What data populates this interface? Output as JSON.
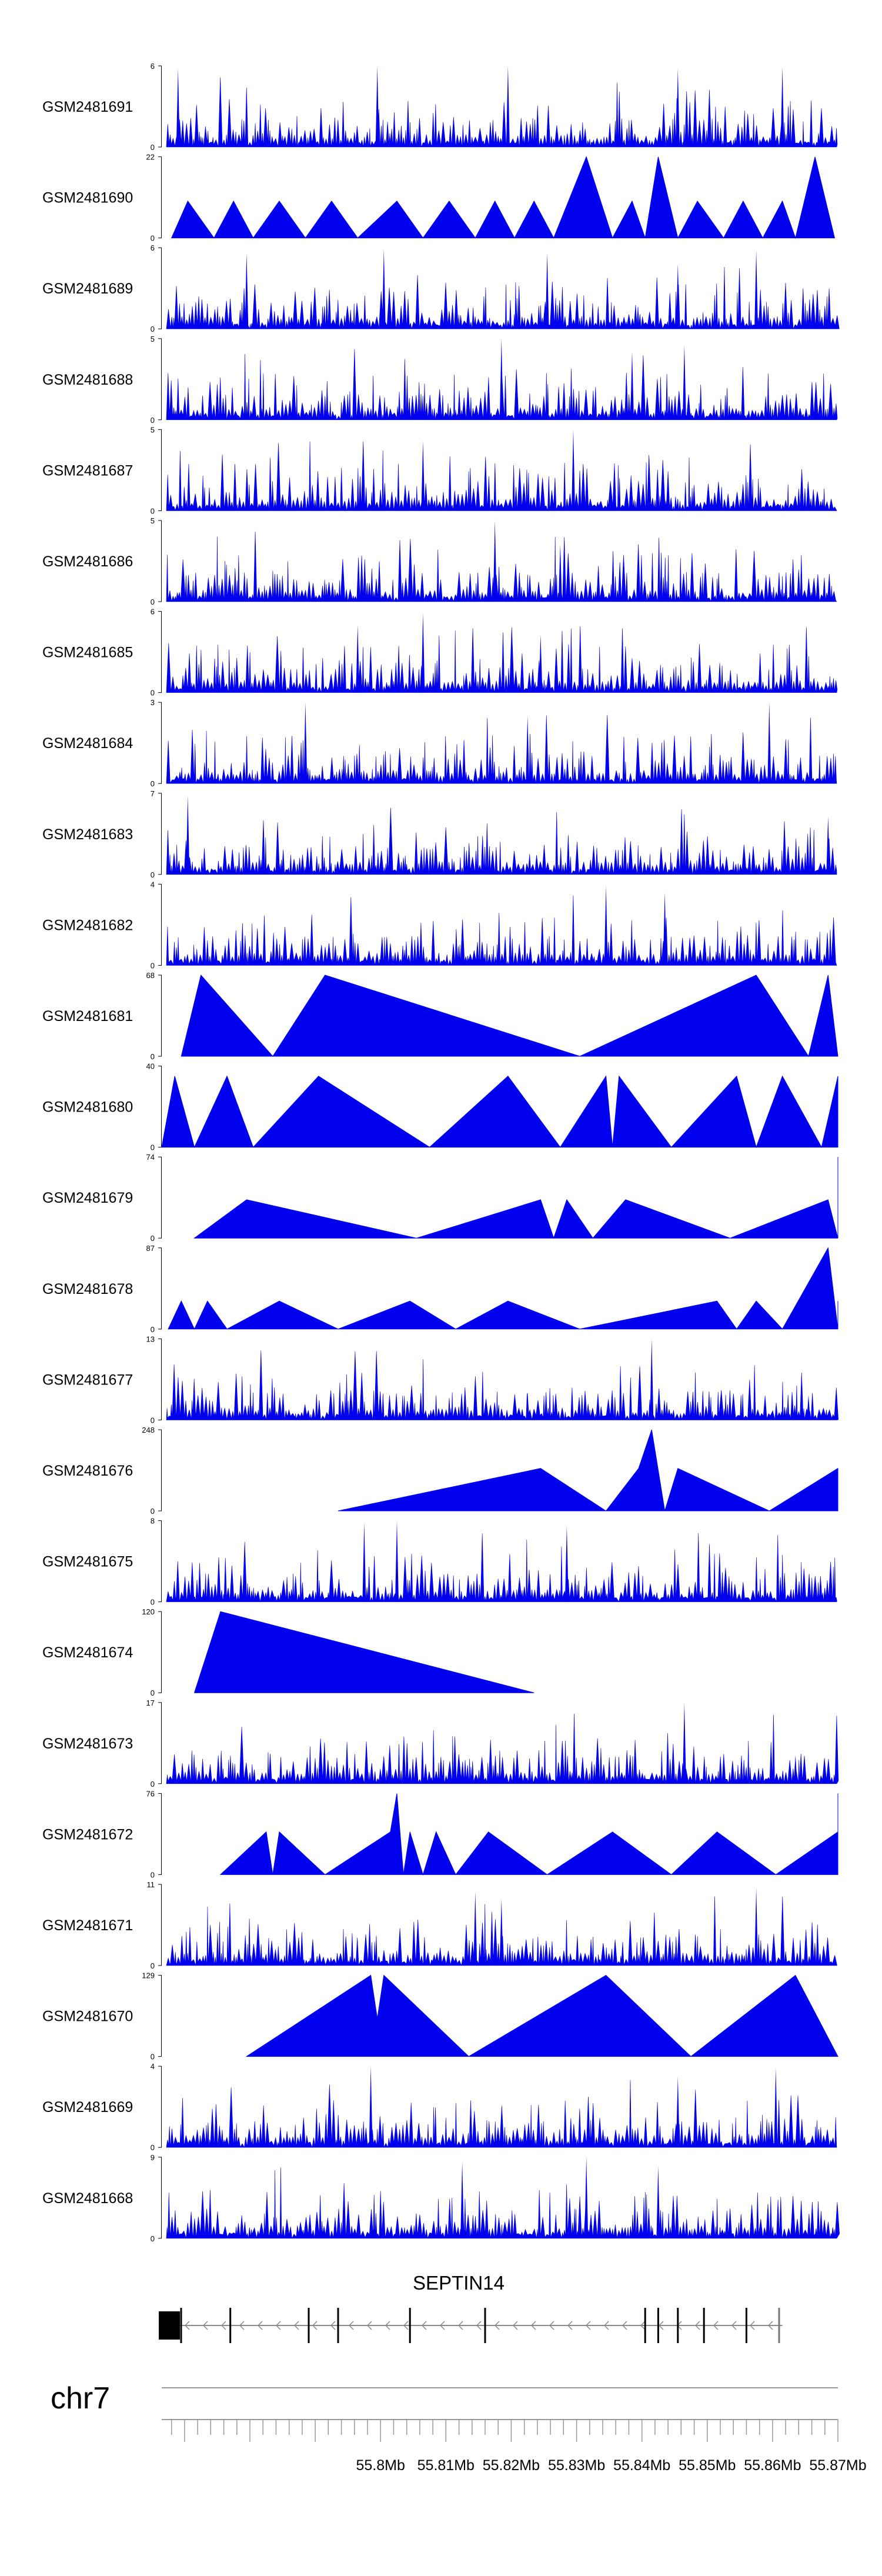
{
  "chart_data": {
    "type": "area",
    "chromosome": "chr7",
    "x_range_mb": [
      55.7665,
      55.87
    ],
    "x_ticks": [
      55.8,
      55.81,
      55.82,
      55.83,
      55.84,
      55.85,
      55.86,
      55.87
    ],
    "x_tick_labels": [
      "55.8Mb",
      "55.81Mb",
      "55.82Mb",
      "55.83Mb",
      "55.84Mb",
      "55.85Mb",
      "55.86Mb",
      "55.87Mb"
    ],
    "fill_color": "#0000ee",
    "tracks": [
      {
        "label": "GSM2481691",
        "ymax": 6,
        "style": "dense",
        "seed": 91,
        "peaks": [
          [
            55.769,
            5.8
          ],
          [
            55.7995,
            6.0
          ],
          [
            55.8195,
            6.0
          ],
          [
            55.8455,
            5.8
          ],
          [
            55.8615,
            5.9
          ]
        ]
      },
      {
        "label": "GSM2481690",
        "ymax": 22,
        "style": "sparse",
        "points": [
          [
            55.768,
            0
          ],
          [
            55.7705,
            10
          ],
          [
            55.7745,
            0
          ],
          [
            55.7775,
            10
          ],
          [
            55.7805,
            0
          ],
          [
            55.7845,
            10
          ],
          [
            55.7885,
            0
          ],
          [
            55.7925,
            10
          ],
          [
            55.7965,
            0
          ],
          [
            55.8025,
            10
          ],
          [
            55.8065,
            0
          ],
          [
            55.8105,
            10
          ],
          [
            55.8145,
            0
          ],
          [
            55.8175,
            10
          ],
          [
            55.8205,
            0
          ],
          [
            55.8235,
            10
          ],
          [
            55.8265,
            0
          ],
          [
            55.8315,
            22
          ],
          [
            55.8355,
            0
          ],
          [
            55.8385,
            10
          ],
          [
            55.8405,
            0
          ],
          [
            55.8425,
            22
          ],
          [
            55.8455,
            0
          ],
          [
            55.8485,
            10
          ],
          [
            55.8525,
            0
          ],
          [
            55.8555,
            10
          ],
          [
            55.8585,
            0
          ],
          [
            55.8615,
            10
          ],
          [
            55.8635,
            0
          ],
          [
            55.8665,
            22
          ],
          [
            55.8695,
            0
          ]
        ]
      },
      {
        "label": "GSM2481689",
        "ymax": 6,
        "style": "dense",
        "seed": 89,
        "peaks": [
          [
            55.7795,
            5.6
          ],
          [
            55.8005,
            5.9
          ],
          [
            55.8255,
            5.6
          ],
          [
            55.8575,
            5.8
          ],
          [
            55.8455,
            4.8
          ]
        ]
      },
      {
        "label": "GSM2481688",
        "ymax": 5,
        "style": "dense",
        "seed": 88,
        "peaks": [
          [
            55.8185,
            5.0
          ],
          [
            55.8385,
            4.2
          ],
          [
            55.8465,
            4.6
          ]
        ]
      },
      {
        "label": "GSM2481687",
        "ymax": 5,
        "style": "dense",
        "seed": 87,
        "peaks": [
          [
            55.8295,
            5.0
          ],
          [
            55.8065,
            4.3
          ]
        ]
      },
      {
        "label": "GSM2481686",
        "ymax": 5,
        "style": "dense",
        "seed": 86,
        "peaks": [
          [
            55.8175,
            5.0
          ],
          [
            55.8275,
            3.5
          ]
        ]
      },
      {
        "label": "GSM2481685",
        "ymax": 6,
        "style": "dense",
        "seed": 85,
        "peaks": [
          [
            55.7965,
            5.0
          ],
          [
            55.8065,
            5.9
          ],
          [
            55.8245,
            4.3
          ]
        ]
      },
      {
        "label": "GSM2481684",
        "ymax": 3,
        "style": "dense",
        "seed": 84,
        "peaks": [
          [
            55.7885,
            3.0
          ],
          [
            55.8595,
            3.0
          ],
          [
            55.8225,
            2.5
          ]
        ]
      },
      {
        "label": "GSM2481683",
        "ymax": 7,
        "style": "dense",
        "seed": 83,
        "peaks": [
          [
            55.7705,
            6.8
          ],
          [
            55.8685,
            5.0
          ]
        ]
      },
      {
        "label": "GSM2481682",
        "ymax": 4,
        "style": "dense",
        "seed": 82,
        "peaks": [
          [
            55.8345,
            3.9
          ],
          [
            55.8435,
            3.6
          ]
        ]
      },
      {
        "label": "GSM2481681",
        "ymax": 68,
        "style": "sparse",
        "points": [
          [
            55.7695,
            0
          ],
          [
            55.7725,
            68
          ],
          [
            55.7835,
            0
          ],
          [
            55.7915,
            68
          ],
          [
            55.8305,
            0
          ],
          [
            55.8575,
            68
          ],
          [
            55.8655,
            0
          ],
          [
            55.8685,
            68
          ],
          [
            55.8735,
            0
          ]
        ]
      },
      {
        "label": "GSM2481680",
        "ymax": 40,
        "style": "sparse",
        "points": [
          [
            55.7665,
            0
          ],
          [
            55.7685,
            35
          ],
          [
            55.7715,
            0
          ],
          [
            55.7765,
            35
          ],
          [
            55.7805,
            0
          ],
          [
            55.7905,
            35
          ],
          [
            55.8075,
            0
          ],
          [
            55.8195,
            35
          ],
          [
            55.8275,
            0
          ],
          [
            55.8345,
            35
          ],
          [
            55.8355,
            0
          ],
          [
            55.8365,
            35
          ],
          [
            55.8445,
            0
          ],
          [
            55.8545,
            35
          ],
          [
            55.8575,
            0
          ],
          [
            55.8615,
            35
          ],
          [
            55.8675,
            0
          ],
          [
            55.8705,
            35
          ]
        ]
      },
      {
        "label": "GSM2481679",
        "ymax": 74,
        "style": "sparse",
        "points": [
          [
            55.7715,
            0
          ],
          [
            55.7795,
            35
          ],
          [
            55.8055,
            0
          ],
          [
            55.8245,
            35
          ],
          [
            55.8265,
            0
          ],
          [
            55.8285,
            35
          ],
          [
            55.8325,
            0
          ],
          [
            55.8375,
            35
          ],
          [
            55.8535,
            0
          ],
          [
            55.8685,
            35
          ],
          [
            55.8705,
            0
          ],
          [
            55.8735,
            74
          ],
          [
            55.8755,
            0
          ]
        ]
      },
      {
        "label": "GSM2481678",
        "ymax": 87,
        "style": "sparse",
        "points": [
          [
            55.7675,
            0
          ],
          [
            55.7695,
            30
          ],
          [
            55.7715,
            0
          ],
          [
            55.7735,
            30
          ],
          [
            55.7765,
            0
          ],
          [
            55.7845,
            30
          ],
          [
            55.7935,
            0
          ],
          [
            55.8045,
            30
          ],
          [
            55.8115,
            0
          ],
          [
            55.8195,
            30
          ],
          [
            55.8305,
            0
          ],
          [
            55.8515,
            30
          ],
          [
            55.8545,
            0
          ],
          [
            55.8575,
            30
          ],
          [
            55.8615,
            0
          ],
          [
            55.8685,
            87
          ],
          [
            55.8715,
            0
          ],
          [
            55.8765,
            30
          ],
          [
            55.8795,
            0
          ]
        ]
      },
      {
        "label": "GSM2481677",
        "ymax": 13,
        "style": "dense",
        "seed": 77,
        "peaks": [
          [
            55.8415,
            13.0
          ],
          [
            55.8225,
            4.5
          ],
          [
            55.8655,
            4.0
          ]
        ]
      },
      {
        "label": "GSM2481676",
        "ymax": 248,
        "style": "sparse",
        "points": [
          [
            55.7935,
            0
          ],
          [
            55.8245,
            130
          ],
          [
            55.8345,
            0
          ],
          [
            55.8395,
            130
          ],
          [
            55.8415,
            248
          ],
          [
            55.8435,
            0
          ],
          [
            55.8455,
            130
          ],
          [
            55.8595,
            0
          ],
          [
            55.8735,
            130
          ],
          [
            55.8755,
            0
          ]
        ]
      },
      {
        "label": "GSM2481675",
        "ymax": 8,
        "style": "dense",
        "seed": 75,
        "peaks": [
          [
            55.7975,
            7.8
          ],
          [
            55.8025,
            8.0
          ],
          [
            55.8285,
            7.5
          ]
        ]
      },
      {
        "label": "GSM2481674",
        "ymax": 120,
        "style": "sparse",
        "points": [
          [
            55.7715,
            0
          ],
          [
            55.7755,
            120
          ],
          [
            55.8235,
            0
          ]
        ]
      },
      {
        "label": "GSM2481673",
        "ymax": 17,
        "style": "dense",
        "seed": 73,
        "peaks": [
          [
            55.8465,
            17.0
          ],
          [
            55.8635,
            6.0
          ]
        ]
      },
      {
        "label": "GSM2481672",
        "ymax": 76,
        "style": "sparse",
        "points": [
          [
            55.7755,
            0
          ],
          [
            55.7825,
            40
          ],
          [
            55.7835,
            0
          ],
          [
            55.7845,
            40
          ],
          [
            55.7915,
            0
          ],
          [
            55.8015,
            40
          ],
          [
            55.8025,
            76
          ],
          [
            55.8035,
            0
          ],
          [
            55.8045,
            40
          ],
          [
            55.8065,
            0
          ],
          [
            55.8085,
            40
          ],
          [
            55.8115,
            0
          ],
          [
            55.8165,
            40
          ],
          [
            55.8255,
            0
          ],
          [
            55.8355,
            40
          ],
          [
            55.8445,
            0
          ],
          [
            55.8515,
            40
          ],
          [
            55.8605,
            0
          ],
          [
            55.8735,
            40
          ],
          [
            55.8745,
            76
          ],
          [
            55.8765,
            0
          ]
        ]
      },
      {
        "label": "GSM2481671",
        "ymax": 11,
        "style": "dense",
        "seed": 71,
        "peaks": [
          [
            55.8145,
            10.0
          ],
          [
            55.8575,
            10.5
          ],
          [
            55.8185,
            9.0
          ]
        ]
      },
      {
        "label": "GSM2481670",
        "ymax": 129,
        "style": "sparse",
        "points": [
          [
            55.7795,
            0
          ],
          [
            55.7985,
            129
          ],
          [
            55.7995,
            60
          ],
          [
            55.8005,
            129
          ],
          [
            55.8135,
            0
          ],
          [
            55.8345,
            129
          ],
          [
            55.8475,
            0
          ],
          [
            55.8635,
            129
          ],
          [
            55.8725,
            0
          ]
        ]
      },
      {
        "label": "GSM2481669",
        "ymax": 4,
        "style": "dense",
        "seed": 69,
        "peaks": [
          [
            55.7985,
            4.0
          ],
          [
            55.8455,
            3.5
          ],
          [
            55.8605,
            3.9
          ]
        ]
      },
      {
        "label": "GSM2481668",
        "ymax": 9,
        "style": "dense",
        "seed": 68,
        "peaks": [
          [
            55.8125,
            8.5
          ],
          [
            55.8315,
            9.0
          ],
          [
            55.8425,
            8.0
          ]
        ]
      }
    ],
    "gene": {
      "name": "SEPTIN14",
      "start_mb": 55.7665,
      "end_mb": 55.8615,
      "strand": "-",
      "exons_mb": [
        55.7665,
        55.777,
        55.789,
        55.7935,
        55.8045,
        55.816,
        55.8405,
        55.8425,
        55.8455,
        55.8495,
        55.856,
        55.861
      ]
    }
  }
}
